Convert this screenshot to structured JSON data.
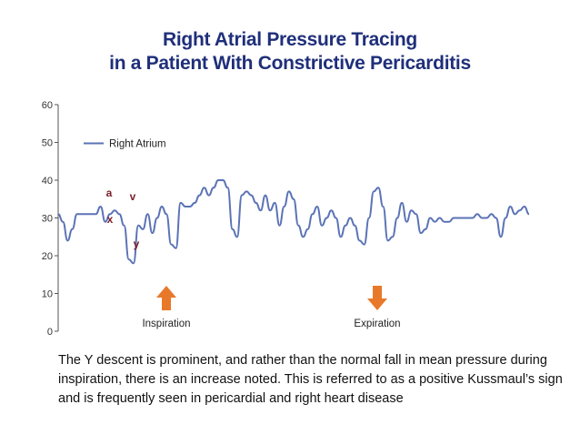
{
  "title": {
    "line1": "Right Atrial Pressure Tracing",
    "line2": "in a Patient With Constrictive Pericarditis"
  },
  "colors": {
    "title": "#1f2f7a",
    "trace": "#5b73b6",
    "arrow": "#e8792a",
    "annotation": "#7a1f2b",
    "axis": "#555555"
  },
  "chart_data": {
    "type": "line",
    "ylim": [
      0,
      60
    ],
    "yticks": [
      "0",
      "10",
      "20",
      "30",
      "40",
      "50",
      "60"
    ],
    "xlim": [
      0,
      100
    ],
    "grid": false,
    "legend_position": "top-left",
    "series": [
      {
        "name": "Right Atrium",
        "x": [
          0,
          1,
          2,
          3,
          4,
          5,
          6,
          7,
          8,
          9,
          10,
          11,
          12,
          13,
          14,
          15,
          16,
          17,
          18,
          19,
          20,
          21,
          22,
          23,
          24,
          25,
          26,
          27,
          28,
          29,
          30,
          31,
          32,
          33,
          34,
          35,
          36,
          37,
          38,
          39,
          40,
          41,
          42,
          43,
          44,
          45,
          46,
          47,
          48,
          49,
          50,
          51,
          52,
          53,
          54,
          55,
          56,
          57,
          58,
          59,
          60,
          61,
          62,
          63,
          64,
          65,
          66,
          67,
          68,
          69,
          70,
          71,
          72,
          73,
          74,
          75,
          76,
          77,
          78,
          79,
          80,
          81,
          82,
          83,
          84,
          85,
          86,
          87,
          88,
          89,
          90,
          91,
          92,
          93,
          94,
          95,
          96,
          97,
          98,
          99,
          100
        ],
        "values": [
          31,
          29,
          24,
          27,
          31,
          31,
          31,
          31,
          31,
          33,
          29,
          31,
          32,
          31,
          28,
          19,
          18,
          28,
          27,
          31,
          26,
          30,
          33,
          31,
          23,
          22,
          34,
          33,
          33,
          34,
          36,
          38,
          36,
          38,
          40,
          40,
          38,
          27,
          25,
          36,
          37,
          36,
          34,
          32,
          36,
          32,
          34,
          28,
          33,
          37,
          35,
          28,
          25,
          27,
          31,
          33,
          28,
          30,
          32,
          30,
          25,
          28,
          30,
          28,
          24,
          23,
          30,
          37,
          38,
          33,
          24,
          25,
          30,
          34,
          29,
          32,
          31,
          26,
          27,
          30,
          29,
          30,
          29,
          29,
          30,
          30,
          30,
          30,
          30,
          31,
          30,
          30,
          31,
          30,
          25,
          30,
          33,
          31,
          32,
          33,
          31
        ]
      }
    ],
    "annotations": [
      {
        "text": "a",
        "x": 9,
        "y": 33
      },
      {
        "text": "x",
        "x": 9.5,
        "y": 29
      },
      {
        "text": "v",
        "x": 13,
        "y": 33
      },
      {
        "text": "y",
        "x": 14,
        "y": 19
      }
    ],
    "arrows": [
      {
        "label": "Inspiration",
        "direction": "up",
        "x": 19
      },
      {
        "label": "Expiration",
        "direction": "down",
        "x": 66
      }
    ]
  },
  "caption": "The Y descent is prominent, and rather than the normal fall in mean pressure during inspiration, there is an increase noted. This is referred to as a positive Kussmaul’s sign and is frequently seen in pericardial and right heart disease"
}
